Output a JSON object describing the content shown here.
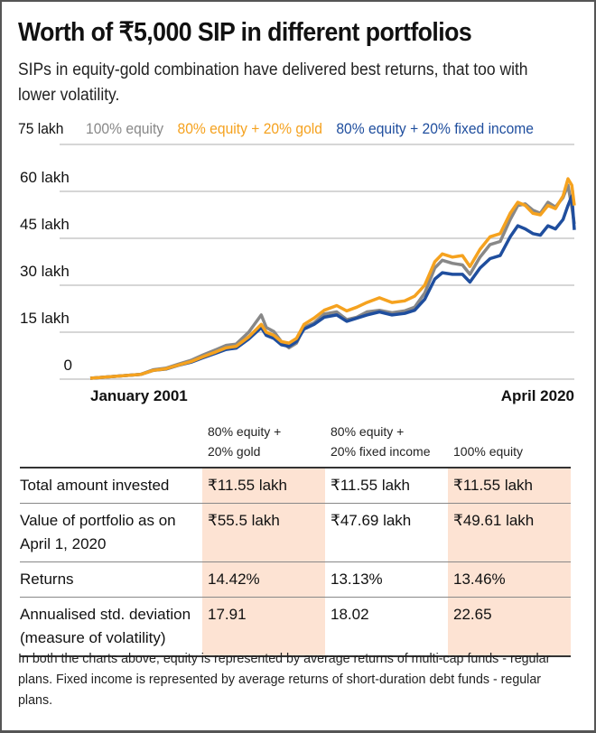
{
  "header": {
    "title": "Worth of ₹5,000 SIP in different portfolios",
    "subtitle": "SIPs in equity-gold combination have delivered best returns, that too with lower volatility."
  },
  "chart_data": {
    "type": "line",
    "title": "Worth of ₹5,000 SIP in different portfolios",
    "xlabel": "",
    "ylabel": "",
    "x_start_label": "January 2001",
    "x_end_label": "April 2020",
    "x_range": [
      2001.0,
      2020.25
    ],
    "ylim": [
      0,
      75
    ],
    "y_unit": "lakh",
    "yticks": [
      0,
      15,
      30,
      45,
      60,
      75
    ],
    "ytick_labels": [
      "0",
      "15 lakh",
      "30 lakh",
      "45 lakh",
      "60 lakh",
      "75 lakh"
    ],
    "grid": true,
    "legend_position": "top",
    "series": [
      {
        "name": "100% equity",
        "color": "#888888",
        "x": [
          2001.0,
          2002.0,
          2003.0,
          2003.5,
          2004.0,
          2004.5,
          2005.0,
          2005.5,
          2006.0,
          2006.4,
          2006.8,
          2007.3,
          2007.8,
          2008.0,
          2008.3,
          2008.6,
          2008.9,
          2009.2,
          2009.5,
          2009.9,
          2010.3,
          2010.8,
          2011.2,
          2011.6,
          2012.0,
          2012.5,
          2013.0,
          2013.5,
          2013.9,
          2014.3,
          2014.7,
          2015.0,
          2015.4,
          2015.8,
          2016.1,
          2016.5,
          2016.9,
          2017.3,
          2017.7,
          2018.0,
          2018.3,
          2018.6,
          2018.9,
          2019.2,
          2019.5,
          2019.8,
          2020.0,
          2020.15,
          2020.25
        ],
        "values": [
          0.3,
          0.9,
          1.5,
          3.0,
          3.5,
          4.8,
          6.0,
          7.8,
          9.4,
          10.8,
          11.2,
          15.0,
          20.5,
          16.5,
          15.2,
          12.0,
          10.0,
          11.5,
          16.5,
          18.0,
          20.8,
          21.5,
          19.0,
          19.8,
          21.5,
          22.0,
          21.2,
          21.8,
          23.0,
          27.5,
          35.5,
          38.0,
          37.0,
          36.5,
          33.5,
          39.0,
          43.0,
          44.0,
          51.0,
          55.5,
          56.0,
          54.0,
          53.0,
          56.5,
          55.0,
          58.0,
          62.0,
          55.0,
          49.61
        ]
      },
      {
        "name": "80% equity + 20% gold",
        "color": "#f5a21f",
        "x": [
          2001.0,
          2002.0,
          2003.0,
          2003.5,
          2004.0,
          2004.5,
          2005.0,
          2005.5,
          2006.0,
          2006.4,
          2006.8,
          2007.3,
          2007.8,
          2008.0,
          2008.3,
          2008.6,
          2008.9,
          2009.2,
          2009.5,
          2009.9,
          2010.3,
          2010.8,
          2011.2,
          2011.6,
          2012.0,
          2012.5,
          2013.0,
          2013.5,
          2013.9,
          2014.3,
          2014.7,
          2015.0,
          2015.4,
          2015.8,
          2016.1,
          2016.5,
          2016.9,
          2017.3,
          2017.7,
          2018.0,
          2018.3,
          2018.6,
          2018.9,
          2019.2,
          2019.5,
          2019.8,
          2020.0,
          2020.15,
          2020.25
        ],
        "values": [
          0.3,
          0.9,
          1.5,
          2.8,
          3.3,
          4.5,
          5.6,
          7.2,
          8.7,
          10.0,
          10.5,
          13.5,
          17.5,
          15.0,
          14.0,
          12.0,
          11.5,
          13.0,
          17.5,
          19.5,
          22.0,
          23.5,
          21.8,
          23.0,
          24.5,
          26.0,
          24.5,
          25.0,
          26.5,
          30.0,
          37.5,
          40.0,
          39.0,
          39.5,
          36.0,
          41.5,
          45.5,
          46.5,
          53.0,
          56.5,
          55.5,
          53.0,
          52.5,
          55.5,
          54.5,
          58.5,
          64.0,
          62.0,
          55.5
        ]
      },
      {
        "name": "80% equity + 20% fixed income",
        "color": "#1f4e9e",
        "x": [
          2001.0,
          2002.0,
          2003.0,
          2003.5,
          2004.0,
          2004.5,
          2005.0,
          2005.5,
          2006.0,
          2006.4,
          2006.8,
          2007.3,
          2007.8,
          2008.0,
          2008.3,
          2008.6,
          2008.9,
          2009.2,
          2009.5,
          2009.9,
          2010.3,
          2010.8,
          2011.2,
          2011.6,
          2012.0,
          2012.5,
          2013.0,
          2013.5,
          2013.9,
          2014.3,
          2014.7,
          2015.0,
          2015.4,
          2015.8,
          2016.1,
          2016.5,
          2016.9,
          2017.3,
          2017.7,
          2018.0,
          2018.3,
          2018.6,
          2018.9,
          2019.2,
          2019.5,
          2019.8,
          2020.0,
          2020.15,
          2020.25
        ],
        "values": [
          0.3,
          0.9,
          1.5,
          2.8,
          3.2,
          4.4,
          5.4,
          6.9,
          8.3,
          9.5,
          9.9,
          12.8,
          16.5,
          14.0,
          13.0,
          11.0,
          10.5,
          12.0,
          16.0,
          17.5,
          19.8,
          20.5,
          18.5,
          19.5,
          20.5,
          21.5,
          20.5,
          21.0,
          22.0,
          25.5,
          32.0,
          34.0,
          33.5,
          33.5,
          31.0,
          35.5,
          38.5,
          39.5,
          45.5,
          49.0,
          48.0,
          46.5,
          46.0,
          49.0,
          48.0,
          51.0,
          55.5,
          58.5,
          47.69
        ]
      }
    ]
  },
  "legend": {
    "items": [
      {
        "label": "100% equity",
        "color": "#888888"
      },
      {
        "label": "80% equity + 20% gold",
        "color": "#f5a21f"
      },
      {
        "label": "80% equity + 20% fixed income",
        "color": "#1f4e9e"
      }
    ]
  },
  "table": {
    "headers": [
      "",
      "80% equity +\n20% gold",
      "80% equity +\n20% fixed income",
      "100% equity"
    ],
    "header_lines": [
      [
        "",
        ""
      ],
      [
        "80% equity +",
        "20% gold"
      ],
      [
        "80% equity +",
        "20% fixed income"
      ],
      [
        "",
        "100% equity"
      ]
    ],
    "highlight_color": "#fde3d3",
    "rows": [
      {
        "label": [
          "Total amount invested"
        ],
        "values": [
          "₹11.55 lakh",
          "₹11.55 lakh",
          "₹11.55 lakh"
        ]
      },
      {
        "label": [
          "Value of portfolio as on",
          "April 1, 2020"
        ],
        "values": [
          "₹55.5 lakh",
          "₹47.69 lakh",
          "₹49.61 lakh"
        ]
      },
      {
        "label": [
          "Returns"
        ],
        "values": [
          "14.42%",
          "13.13%",
          "13.46%"
        ]
      },
      {
        "label": [
          "Annualised std. deviation",
          "(measure of volatility)"
        ],
        "values": [
          "17.91",
          "18.02",
          "22.65"
        ]
      }
    ]
  },
  "footnote": "In both the charts above, equity is represented by average returns of multi-cap funds - regular plans. Fixed income is represented by average returns of short-duration debt funds - regular plans."
}
